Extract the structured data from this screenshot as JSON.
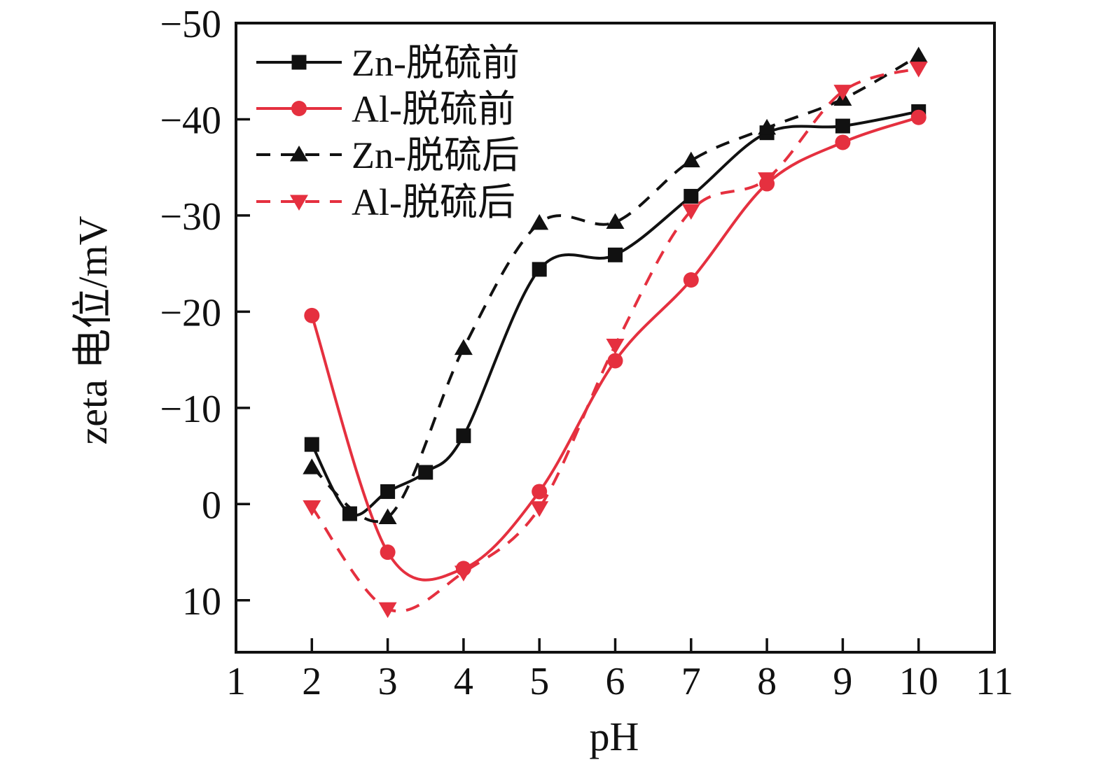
{
  "chart_data": {
    "type": "line",
    "title": "",
    "xlabel": "pH",
    "ylabel": "zeta 电位/mV",
    "xlim": [
      1,
      11
    ],
    "ylim_top_to_bottom": [
      -50,
      15.4
    ],
    "y_axis_inverted": true,
    "grid": false,
    "legend_position": "top-left",
    "colors": {
      "black": "#111111",
      "red": "#e5303f"
    },
    "x_ticks": [
      {
        "v": 1,
        "label": "1"
      },
      {
        "v": 2,
        "label": "2"
      },
      {
        "v": 3,
        "label": "3"
      },
      {
        "v": 4,
        "label": "4"
      },
      {
        "v": 5,
        "label": "5"
      },
      {
        "v": 6,
        "label": "6"
      },
      {
        "v": 7,
        "label": "7"
      },
      {
        "v": 8,
        "label": "8"
      },
      {
        "v": 9,
        "label": "9"
      },
      {
        "v": 10,
        "label": "10"
      },
      {
        "v": 11,
        "label": "11"
      }
    ],
    "y_ticks": [
      {
        "v": -50,
        "label": "−50"
      },
      {
        "v": -40,
        "label": "−40"
      },
      {
        "v": -30,
        "label": "−30"
      },
      {
        "v": -20,
        "label": "−20"
      },
      {
        "v": -10,
        "label": "−10"
      },
      {
        "v": 0,
        "label": "0"
      },
      {
        "v": 10,
        "label": "10"
      }
    ],
    "series": [
      {
        "id": "zn-before",
        "name": "Zn-脱硫前",
        "color": "#111111",
        "line": "solid",
        "marker": "square",
        "points": [
          [
            2,
            -6.2
          ],
          [
            2.5,
            1.0
          ],
          [
            3,
            -1.3
          ],
          [
            3.5,
            -3.3
          ],
          [
            4,
            -7.1
          ],
          [
            5,
            -24.4
          ],
          [
            6,
            -25.9
          ],
          [
            7,
            -32.0
          ],
          [
            8,
            -38.6
          ],
          [
            9,
            -39.3
          ],
          [
            10,
            -40.8
          ]
        ]
      },
      {
        "id": "al-before",
        "name": "Al-脱硫前",
        "color": "#e5303f",
        "line": "solid",
        "marker": "circle",
        "points": [
          [
            2,
            -19.6
          ],
          [
            3,
            5.0
          ],
          [
            4,
            6.7
          ],
          [
            5,
            -1.3
          ],
          [
            6,
            -14.9
          ],
          [
            7,
            -23.3
          ],
          [
            8,
            -33.3
          ],
          [
            9,
            -37.6
          ],
          [
            10,
            -40.2
          ]
        ]
      },
      {
        "id": "zn-after",
        "name": "Zn-脱硫后",
        "color": "#111111",
        "line": "dashed",
        "marker": "triangle-up",
        "points": [
          [
            2,
            -3.8
          ],
          [
            3,
            1.4
          ],
          [
            4,
            -16.2
          ],
          [
            5,
            -29.2
          ],
          [
            6,
            -29.3
          ],
          [
            7,
            -35.7
          ],
          [
            8,
            -39.1
          ],
          [
            9,
            -42.1
          ],
          [
            10,
            -46.6
          ]
        ]
      },
      {
        "id": "al-after",
        "name": "Al-脱硫后",
        "color": "#e5303f",
        "line": "dashed",
        "marker": "triangle-down",
        "points": [
          [
            2,
            0.3
          ],
          [
            3,
            10.9
          ],
          [
            4,
            7.1
          ],
          [
            5,
            0.4
          ],
          [
            6,
            -16.5
          ],
          [
            7,
            -30.5
          ],
          [
            8,
            -33.8
          ],
          [
            9,
            -42.9
          ],
          [
            10,
            -45.3
          ]
        ]
      }
    ]
  }
}
